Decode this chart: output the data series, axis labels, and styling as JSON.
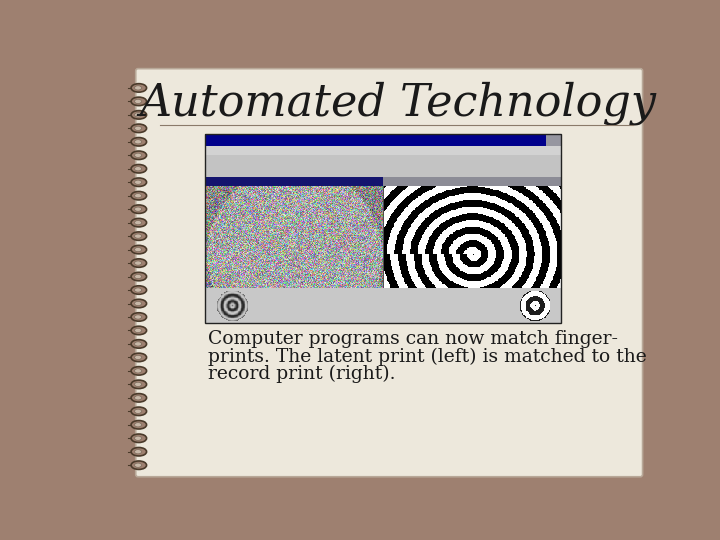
{
  "title": "Automated Technology",
  "title_fontsize": 32,
  "title_font": "serif",
  "caption_line1": "Computer programs can now match finger-",
  "caption_line2": "prints. The latent print (left) is matched to the",
  "caption_line3": "record print (right).",
  "caption_fontsize": 13.5,
  "caption_font": "serif",
  "bg_outer": "#9e8070",
  "bg_page": "#ede8dc",
  "title_color": "#1a1a1a",
  "caption_color": "#1a1a1a",
  "divider_color": "#8a7a6a",
  "spiral_dark": "#4a3a2a",
  "spiral_mid": "#7a6a5a",
  "spiral_light": "#c8b8a8"
}
